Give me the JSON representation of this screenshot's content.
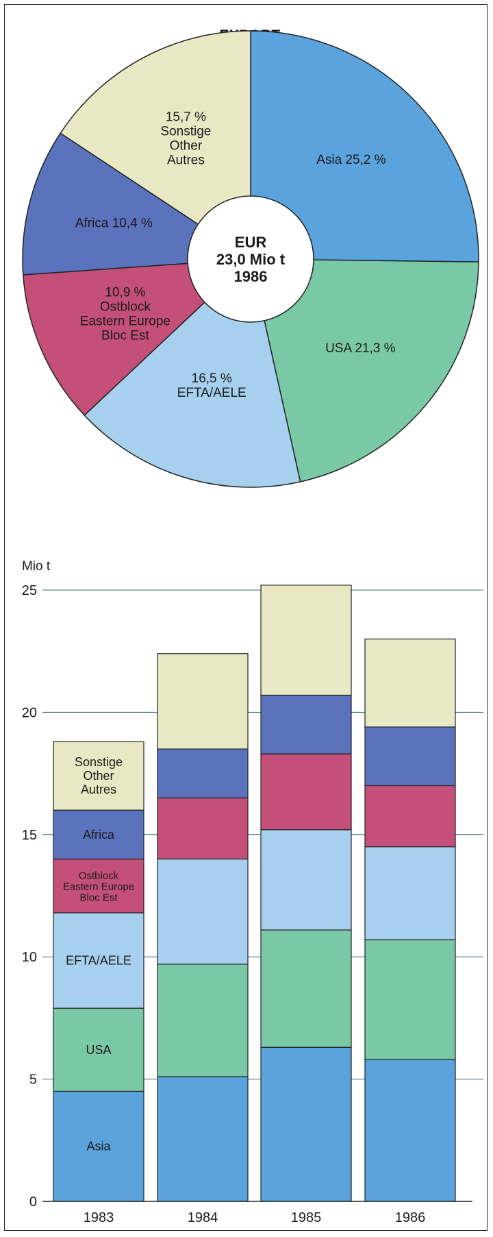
{
  "title": "EXPORT",
  "colors": {
    "asia": "#5aa3dd",
    "usa": "#79c8a6",
    "efta": "#a7cfee",
    "ostblock": "#c44f78",
    "africa": "#5b72bd",
    "sonstige": "#e8e8c5"
  },
  "chart_data": [
    {
      "type": "pie",
      "center_label": [
        "EUR",
        "23,0 Mio t",
        "1986"
      ],
      "slices": [
        {
          "key": "asia",
          "value": 25.2,
          "label": [
            "Asia 25,2 %"
          ]
        },
        {
          "key": "usa",
          "value": 21.3,
          "label": [
            "USA 21,3 %"
          ]
        },
        {
          "key": "efta",
          "value": 16.5,
          "label": [
            "16,5 %",
            "EFTA/AELE"
          ]
        },
        {
          "key": "ostblock",
          "value": 10.9,
          "label": [
            "10,9 %",
            "Ostblock",
            "Eastern Europe",
            "Bloc Est"
          ]
        },
        {
          "key": "africa",
          "value": 10.4,
          "label": [
            "Africa 10,4 %"
          ]
        },
        {
          "key": "sonstige",
          "value": 15.7,
          "label": [
            "15,7 %",
            "Sonstige",
            "Other",
            "Autres"
          ]
        }
      ]
    },
    {
      "type": "bar",
      "stacked": true,
      "ylabel": "Mio t",
      "ylim": [
        0,
        25
      ],
      "yticks": [
        0,
        5,
        10,
        15,
        20,
        25
      ],
      "grid": true,
      "categories": [
        "1983",
        "1984",
        "1985",
        "1986"
      ],
      "series": [
        {
          "key": "asia",
          "name": "Asia",
          "values": [
            4.5,
            5.1,
            6.3,
            5.8
          ]
        },
        {
          "key": "usa",
          "name": "USA",
          "values": [
            3.4,
            4.6,
            4.8,
            4.9
          ]
        },
        {
          "key": "efta",
          "name": "EFTA/AELE",
          "values": [
            3.9,
            4.3,
            4.1,
            3.8
          ]
        },
        {
          "key": "ostblock",
          "name": "Ostblock\nEastern Europe\nBloc Est",
          "values": [
            2.2,
            2.5,
            3.1,
            2.5
          ]
        },
        {
          "key": "africa",
          "name": "Africa",
          "values": [
            2.0,
            2.0,
            2.4,
            2.4
          ]
        },
        {
          "key": "sonstige",
          "name": "Sonstige\nOther\nAutres",
          "values": [
            2.8,
            3.9,
            4.5,
            3.6
          ]
        }
      ]
    }
  ]
}
